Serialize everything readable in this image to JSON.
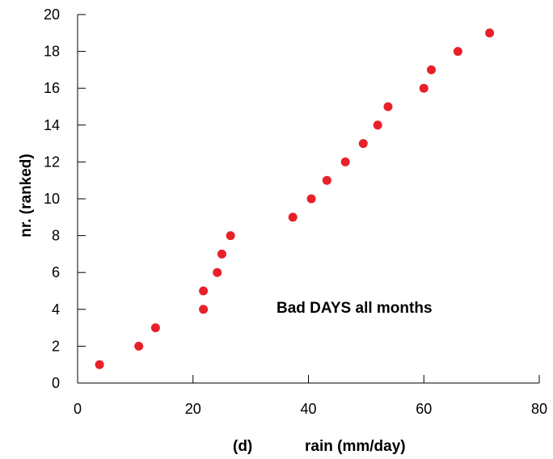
{
  "chart_data": {
    "type": "scatter",
    "xlabel": "rain (mm/day)",
    "panel_label": "(d)",
    "ylabel": "nr. (ranked)",
    "annotation": "Bad DAYS all months",
    "xlim": [
      0,
      80
    ],
    "ylim": [
      0,
      20
    ],
    "xticks": [
      0,
      20,
      40,
      60,
      80
    ],
    "yticks": [
      0,
      2,
      4,
      6,
      8,
      10,
      12,
      14,
      16,
      18,
      20
    ],
    "grid": false,
    "marker_color": "#e8202a",
    "series": [
      {
        "points": [
          {
            "x": 3.8,
            "y": 1
          },
          {
            "x": 10.6,
            "y": 2
          },
          {
            "x": 13.5,
            "y": 3
          },
          {
            "x": 21.8,
            "y": 4
          },
          {
            "x": 21.8,
            "y": 5
          },
          {
            "x": 24.2,
            "y": 6
          },
          {
            "x": 25.0,
            "y": 7
          },
          {
            "x": 26.5,
            "y": 8
          },
          {
            "x": 37.3,
            "y": 9
          },
          {
            "x": 40.5,
            "y": 10
          },
          {
            "x": 43.2,
            "y": 11
          },
          {
            "x": 46.4,
            "y": 12
          },
          {
            "x": 49.5,
            "y": 13
          },
          {
            "x": 52.0,
            "y": 14
          },
          {
            "x": 53.8,
            "y": 15
          },
          {
            "x": 60.0,
            "y": 16
          },
          {
            "x": 61.3,
            "y": 17
          },
          {
            "x": 65.9,
            "y": 18
          },
          {
            "x": 71.4,
            "y": 19
          }
        ]
      }
    ]
  }
}
